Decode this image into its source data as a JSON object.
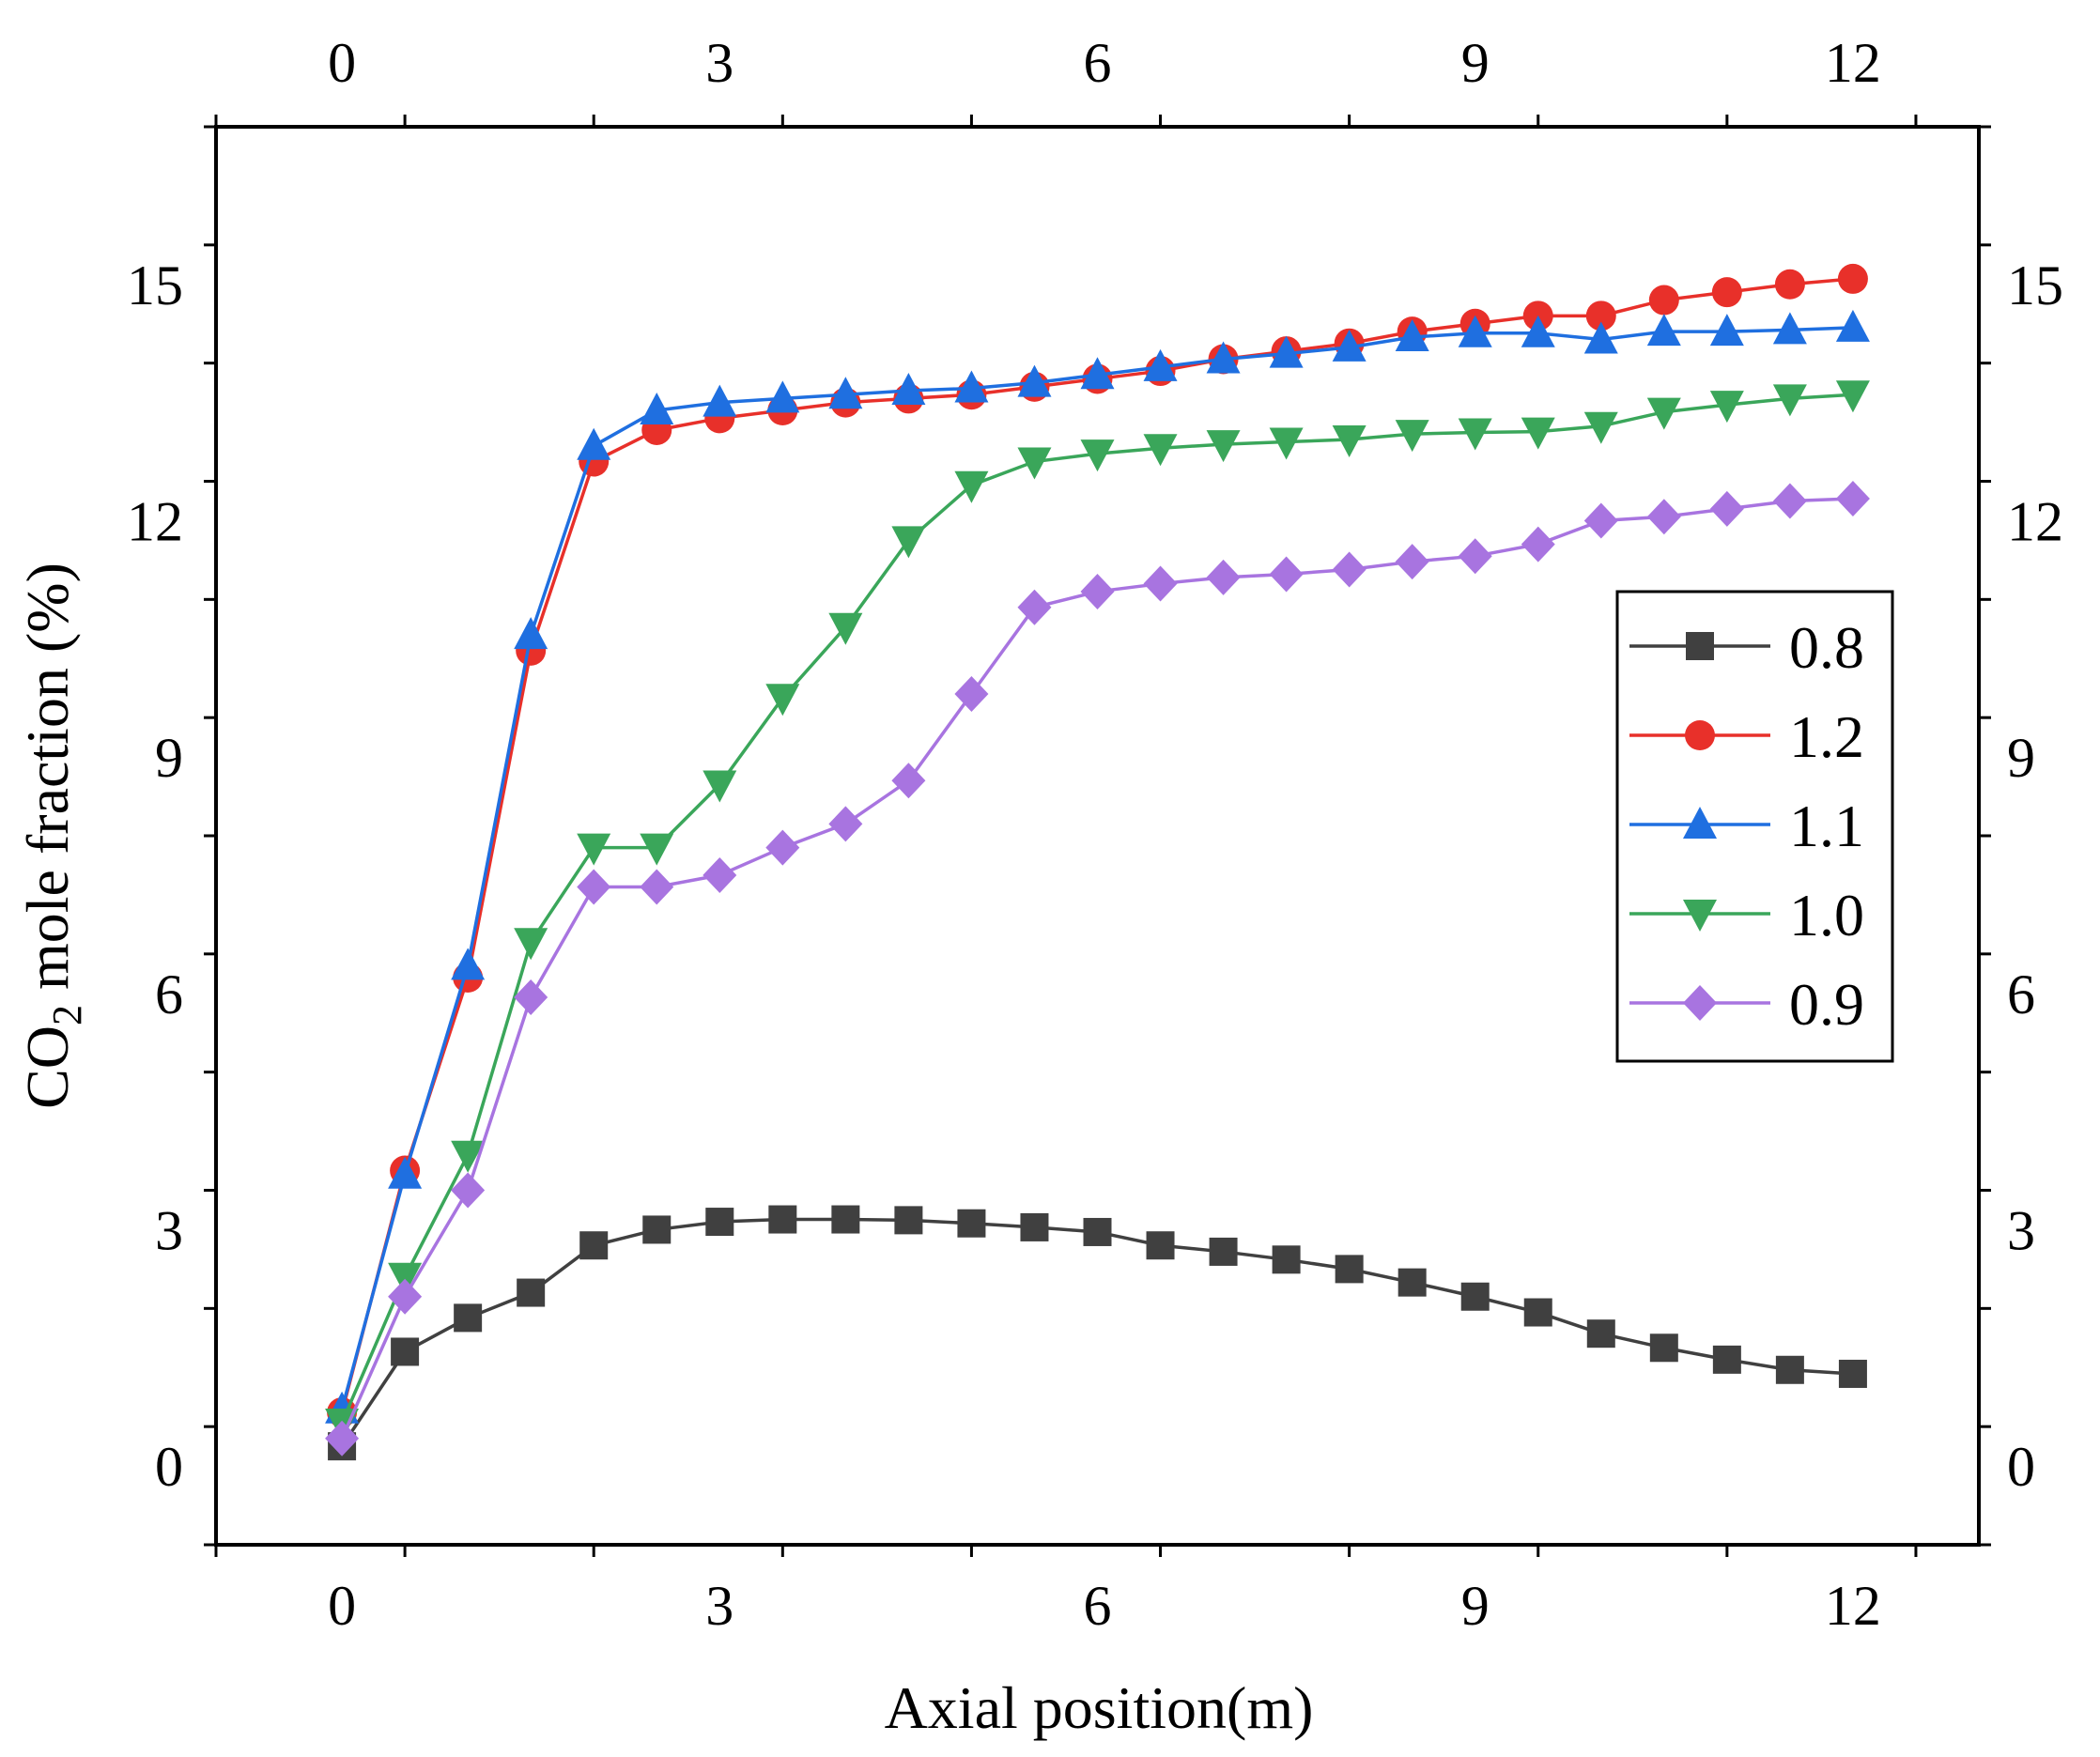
{
  "chart_data": {
    "type": "line",
    "title": "",
    "xlabel": "Axial position(m)",
    "ylabel": "CO2 mole fraction (%)",
    "ylabel_main": "CO",
    "ylabel_sub": "2",
    "ylabel_rest": " mole fraction (%)",
    "xlim": [
      -1.0,
      13.0
    ],
    "ylim": [
      -1.0,
      17.0
    ],
    "x_ticks": [
      "0",
      "3",
      "6",
      "9",
      "12"
    ],
    "y_ticks": [
      "0",
      "3",
      "6",
      "9",
      "12",
      "15"
    ],
    "x_tick_values": [
      0,
      3,
      6,
      9,
      12
    ],
    "y_tick_values": [
      0,
      3,
      6,
      9,
      12,
      15
    ],
    "top_axis_mirrored": true,
    "right_axis_mirrored": true,
    "legend_position": "center-right",
    "x": [
      0,
      0.5,
      1,
      1.5,
      2,
      2.5,
      3,
      3.5,
      4,
      4.5,
      5,
      5.5,
      6,
      6.5,
      7,
      7.5,
      8,
      8.5,
      9,
      9.5,
      10,
      10.5,
      11,
      11.5,
      12
    ],
    "series": [
      {
        "name": "0.8",
        "color": "#404040",
        "marker": "square",
        "values": [
          0.25,
          1.45,
          1.88,
          2.2,
          2.8,
          3.0,
          3.1,
          3.13,
          3.13,
          3.12,
          3.08,
          3.03,
          2.97,
          2.8,
          2.72,
          2.62,
          2.5,
          2.33,
          2.15,
          1.95,
          1.68,
          1.5,
          1.35,
          1.22,
          1.17
        ]
      },
      {
        "name": "1.2",
        "color": "#e8302a",
        "marker": "circle",
        "values": [
          0.68,
          3.75,
          6.2,
          10.35,
          12.75,
          13.15,
          13.3,
          13.4,
          13.5,
          13.55,
          13.6,
          13.7,
          13.8,
          13.9,
          14.05,
          14.15,
          14.25,
          14.4,
          14.5,
          14.6,
          14.6,
          14.8,
          14.9,
          15.0,
          15.07
        ]
      },
      {
        "name": "1.1",
        "color": "#1f6fe0",
        "marker": "triangle-up",
        "values": [
          0.72,
          3.7,
          6.35,
          10.55,
          12.95,
          13.4,
          13.5,
          13.55,
          13.6,
          13.65,
          13.68,
          13.75,
          13.85,
          13.95,
          14.05,
          14.12,
          14.2,
          14.33,
          14.38,
          14.38,
          14.3,
          14.4,
          14.4,
          14.42,
          14.45
        ]
      },
      {
        "name": "1.0",
        "color": "#3aa65a",
        "marker": "triangle-down",
        "values": [
          0.55,
          2.4,
          3.95,
          6.65,
          7.85,
          7.85,
          8.65,
          9.75,
          10.65,
          11.75,
          12.45,
          12.75,
          12.85,
          12.92,
          12.97,
          13.0,
          13.03,
          13.1,
          13.12,
          13.13,
          13.2,
          13.38,
          13.47,
          13.55,
          13.6
        ]
      },
      {
        "name": "0.9",
        "color": "#a874e0",
        "marker": "diamond",
        "values": [
          0.35,
          2.15,
          3.5,
          5.95,
          7.35,
          7.35,
          7.5,
          7.85,
          8.15,
          8.7,
          9.8,
          10.9,
          11.1,
          11.2,
          11.28,
          11.32,
          11.38,
          11.48,
          11.55,
          11.7,
          12.0,
          12.05,
          12.15,
          12.25,
          12.28
        ]
      }
    ]
  }
}
